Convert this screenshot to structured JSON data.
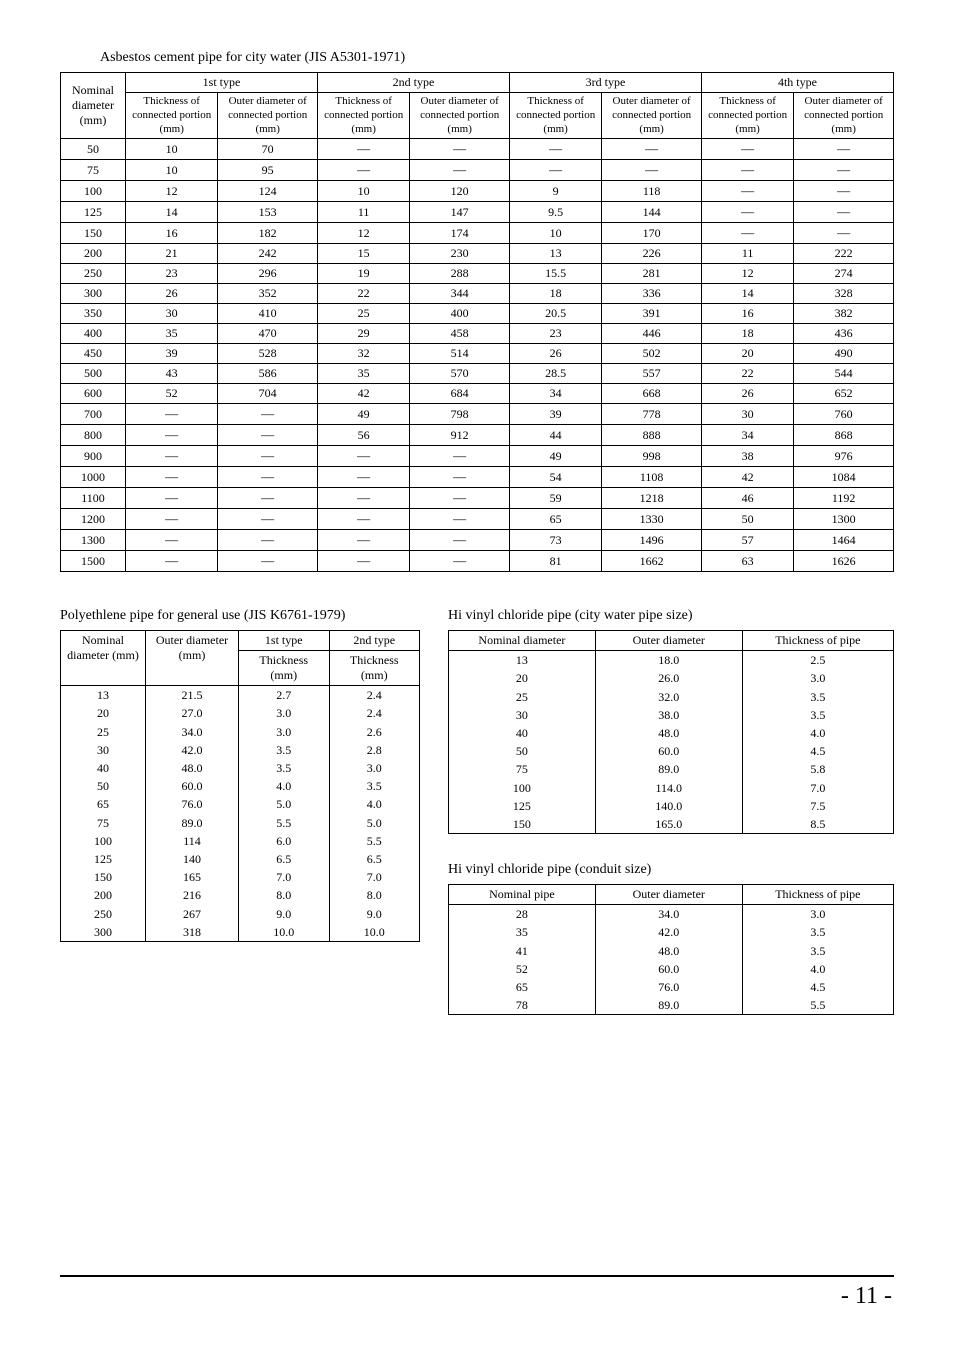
{
  "table1": {
    "title": "Asbestos cement pipe for city water  (JIS A5301-1971)",
    "corner": "Nominal diameter (mm)",
    "type_labels": [
      "1st type",
      "2nd type",
      "3rd type",
      "4th type"
    ],
    "sub_thick": "Thickness of connected portion (mm)",
    "sub_outer": "Outer diameter of connected portion (mm)",
    "dash": "—",
    "rows": [
      {
        "n": "50",
        "v": [
          "10",
          "70",
          "—",
          "—",
          "—",
          "—",
          "—",
          "—"
        ]
      },
      {
        "n": "75",
        "v": [
          "10",
          "95",
          "—",
          "—",
          "—",
          "—",
          "—",
          "—"
        ]
      },
      {
        "n": "100",
        "v": [
          "12",
          "124",
          "10",
          "120",
          "9",
          "118",
          "—",
          "—"
        ]
      },
      {
        "n": "125",
        "v": [
          "14",
          "153",
          "11",
          "147",
          "9.5",
          "144",
          "—",
          "—"
        ]
      },
      {
        "n": "150",
        "v": [
          "16",
          "182",
          "12",
          "174",
          "10",
          "170",
          "—",
          "—"
        ]
      },
      {
        "n": "200",
        "v": [
          "21",
          "242",
          "15",
          "230",
          "13",
          "226",
          "11",
          "222"
        ]
      },
      {
        "n": "250",
        "v": [
          "23",
          "296",
          "19",
          "288",
          "15.5",
          "281",
          "12",
          "274"
        ]
      },
      {
        "n": "300",
        "v": [
          "26",
          "352",
          "22",
          "344",
          "18",
          "336",
          "14",
          "328"
        ]
      },
      {
        "n": "350",
        "v": [
          "30",
          "410",
          "25",
          "400",
          "20.5",
          "391",
          "16",
          "382"
        ]
      },
      {
        "n": "400",
        "v": [
          "35",
          "470",
          "29",
          "458",
          "23",
          "446",
          "18",
          "436"
        ]
      },
      {
        "n": "450",
        "v": [
          "39",
          "528",
          "32",
          "514",
          "26",
          "502",
          "20",
          "490"
        ]
      },
      {
        "n": "500",
        "v": [
          "43",
          "586",
          "35",
          "570",
          "28.5",
          "557",
          "22",
          "544"
        ]
      },
      {
        "n": "600",
        "v": [
          "52",
          "704",
          "42",
          "684",
          "34",
          "668",
          "26",
          "652"
        ]
      },
      {
        "n": "700",
        "v": [
          "—",
          "—",
          "49",
          "798",
          "39",
          "778",
          "30",
          "760"
        ]
      },
      {
        "n": "800",
        "v": [
          "—",
          "—",
          "56",
          "912",
          "44",
          "888",
          "34",
          "868"
        ]
      },
      {
        "n": "900",
        "v": [
          "—",
          "—",
          "—",
          "—",
          "49",
          "998",
          "38",
          "976"
        ]
      },
      {
        "n": "1000",
        "v": [
          "—",
          "—",
          "—",
          "—",
          "54",
          "1108",
          "42",
          "1084"
        ]
      },
      {
        "n": "1100",
        "v": [
          "—",
          "—",
          "—",
          "—",
          "59",
          "1218",
          "46",
          "1192"
        ]
      },
      {
        "n": "1200",
        "v": [
          "—",
          "—",
          "—",
          "—",
          "65",
          "1330",
          "50",
          "1300"
        ]
      },
      {
        "n": "1300",
        "v": [
          "—",
          "—",
          "—",
          "—",
          "73",
          "1496",
          "57",
          "1464"
        ]
      },
      {
        "n": "1500",
        "v": [
          "—",
          "—",
          "—",
          "—",
          "81",
          "1662",
          "63",
          "1626"
        ]
      }
    ]
  },
  "table2": {
    "title": "Polyethlene pipe for general use  (JIS K6761-1979)",
    "h_nominal": "Nominal diameter (mm)",
    "h_outer": "Outer diameter (mm)",
    "h_type1": "1st type",
    "h_type2": "2nd type",
    "h_thick": "Thickness (mm)",
    "rows": [
      [
        "13",
        "21.5",
        "2.7",
        "2.4"
      ],
      [
        "20",
        "27.0",
        "3.0",
        "2.4"
      ],
      [
        "25",
        "34.0",
        "3.0",
        "2.6"
      ],
      [
        "30",
        "42.0",
        "3.5",
        "2.8"
      ],
      [
        "40",
        "48.0",
        "3.5",
        "3.0"
      ],
      [
        "50",
        "60.0",
        "4.0",
        "3.5"
      ],
      [
        "65",
        "76.0",
        "5.0",
        "4.0"
      ],
      [
        "75",
        "89.0",
        "5.5",
        "5.0"
      ],
      [
        "100",
        "114",
        "6.0",
        "5.5"
      ],
      [
        "125",
        "140",
        "6.5",
        "6.5"
      ],
      [
        "150",
        "165",
        "7.0",
        "7.0"
      ],
      [
        "200",
        "216",
        "8.0",
        "8.0"
      ],
      [
        "250",
        "267",
        "9.0",
        "9.0"
      ],
      [
        "300",
        "318",
        "10.0",
        "10.0"
      ]
    ]
  },
  "table3": {
    "title": "Hi vinyl chloride pipe  (city water pipe size)",
    "h1": "Nominal diameter",
    "h2": "Outer diameter",
    "h3": "Thickness of pipe",
    "rows": [
      [
        "13",
        "18.0",
        "2.5"
      ],
      [
        "20",
        "26.0",
        "3.0"
      ],
      [
        "25",
        "32.0",
        "3.5"
      ],
      [
        "30",
        "38.0",
        "3.5"
      ],
      [
        "40",
        "48.0",
        "4.0"
      ],
      [
        "50",
        "60.0",
        "4.5"
      ],
      [
        "75",
        "89.0",
        "5.8"
      ],
      [
        "100",
        "114.0",
        "7.0"
      ],
      [
        "125",
        "140.0",
        "7.5"
      ],
      [
        "150",
        "165.0",
        "8.5"
      ]
    ]
  },
  "table4": {
    "title": "Hi vinyl chloride pipe (conduit size)",
    "h1": "Nominal pipe",
    "h2": "Outer diameter",
    "h3": "Thickness of pipe",
    "rows": [
      [
        "28",
        "34.0",
        "3.0"
      ],
      [
        "35",
        "42.0",
        "3.5"
      ],
      [
        "41",
        "48.0",
        "3.5"
      ],
      [
        "52",
        "60.0",
        "4.0"
      ],
      [
        "65",
        "76.0",
        "4.5"
      ],
      [
        "78",
        "89.0",
        "5.5"
      ]
    ]
  },
  "page_number": "- 11  -"
}
